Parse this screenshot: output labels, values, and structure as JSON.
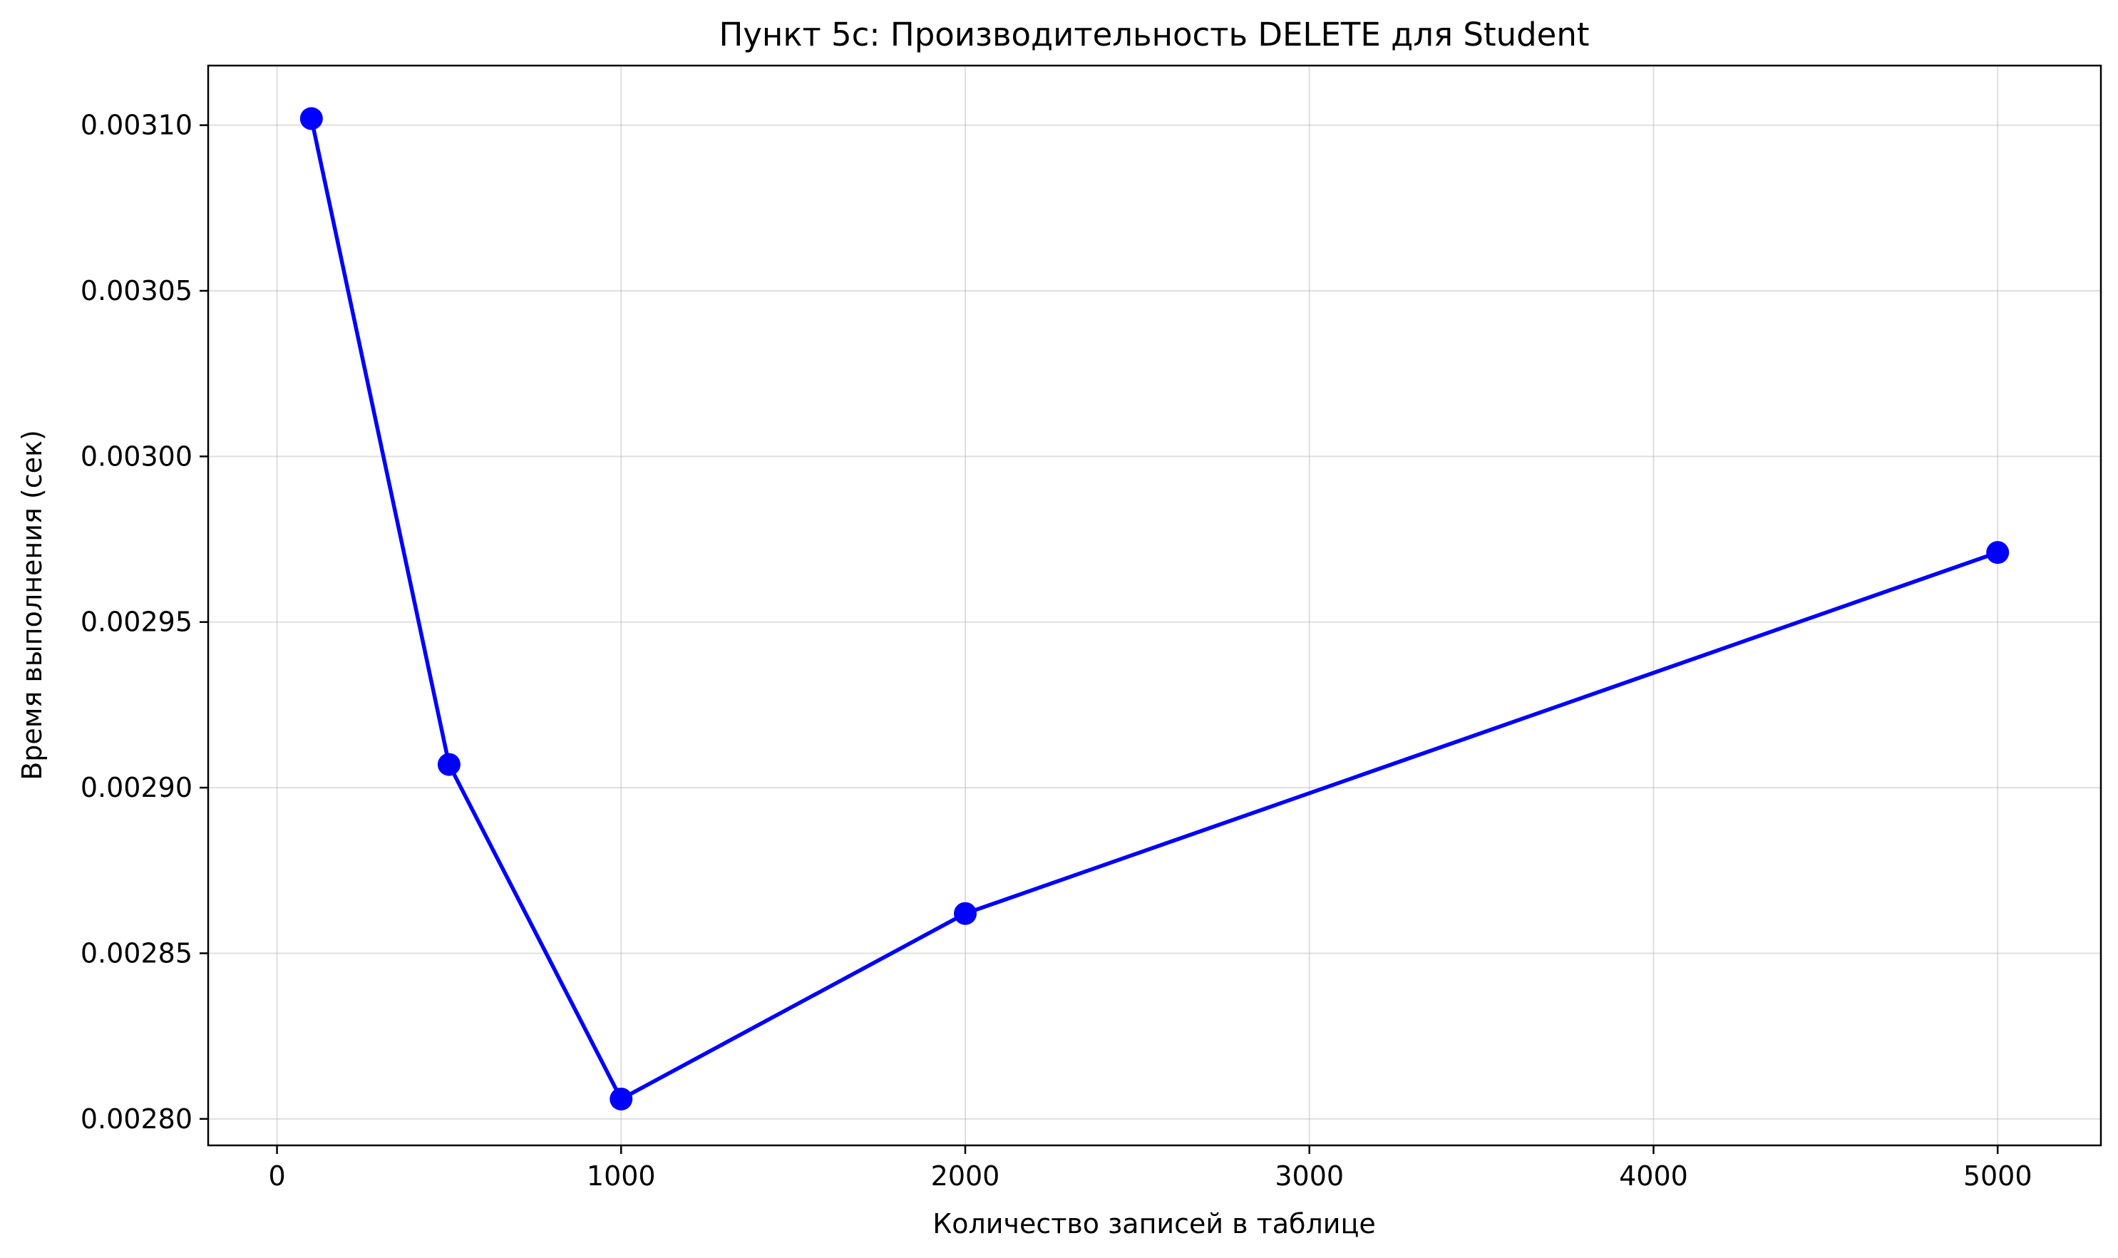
{
  "chart_data": {
    "type": "line",
    "title": "Пункт 5c: Производительность DELETE для Student",
    "xlabel": "Количество записей в таблице",
    "ylabel": "Время выполнения (сек)",
    "xlim": [
      -200,
      5300
    ],
    "ylim": [
      0.002792,
      0.003118
    ],
    "xticks": [
      0,
      1000,
      2000,
      3000,
      4000,
      5000
    ],
    "xtick_labels": [
      "0",
      "1000",
      "2000",
      "3000",
      "4000",
      "5000"
    ],
    "yticks": [
      0.0028,
      0.00285,
      0.0029,
      0.00295,
      0.003,
      0.00305,
      0.0031
    ],
    "ytick_labels": [
      "0.00280",
      "0.00285",
      "0.00290",
      "0.00295",
      "0.00300",
      "0.00305",
      "0.00310"
    ],
    "grid": true,
    "series": [
      {
        "x": [
          100,
          500,
          1000,
          2000,
          5000
        ],
        "y": [
          0.003102,
          0.002907,
          0.002806,
          0.002862,
          0.002971
        ],
        "color": "#0000ff",
        "marker": "circle"
      }
    ]
  }
}
